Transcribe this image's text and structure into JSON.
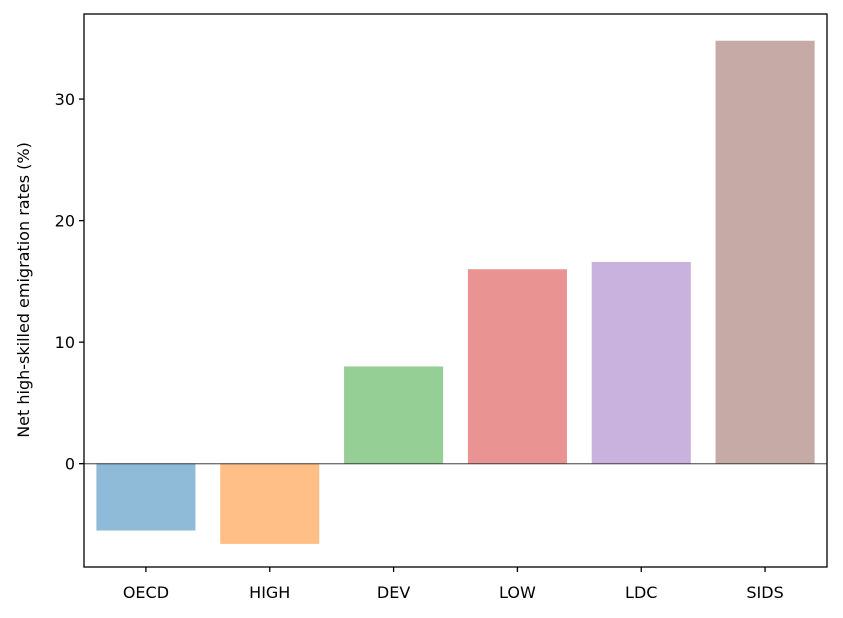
{
  "chart_data": {
    "type": "bar",
    "categories": [
      "OECD",
      "HIGH",
      "DEV",
      "LOW",
      "LDC",
      "SIDS"
    ],
    "values": [
      -5.5,
      -6.6,
      8.0,
      16.0,
      16.6,
      34.8
    ],
    "colors": [
      "#1f77b4",
      "#ff7f0e",
      "#2ca02c",
      "#d62728",
      "#9467bd",
      "#8c564b"
    ],
    "bar_opacity": 0.5,
    "title": "",
    "xlabel": "",
    "ylabel": "Net high-skilled emigration rates (%)",
    "ylim": [
      -8.5,
      37
    ],
    "yticks": [
      0,
      10,
      20,
      30
    ],
    "zero_line": true,
    "grid": false,
    "legend": "none"
  }
}
